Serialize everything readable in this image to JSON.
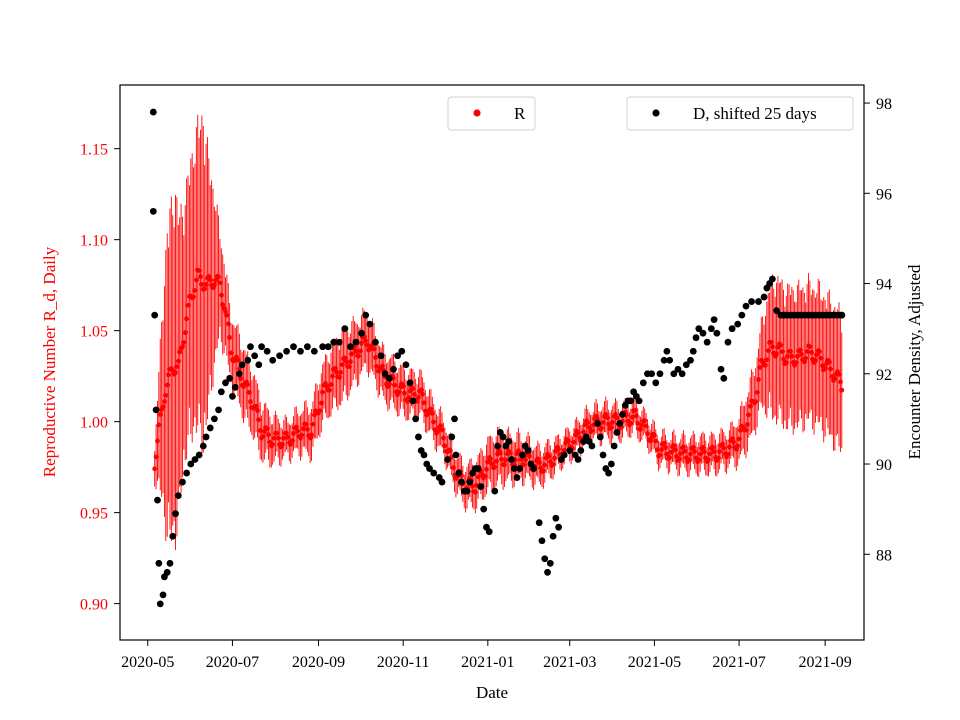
{
  "chart_data": {
    "type": "scatter",
    "xlabel": "Date",
    "ylabel_left": "Reproductive Number R_d, Daily",
    "ylabel_right": "Encounter Density, Adjusted",
    "x_ticks": [
      "2020-05",
      "2020-07",
      "2020-09",
      "2020-11",
      "2021-01",
      "2021-03",
      "2021-05",
      "2021-07",
      "2021-09"
    ],
    "x_tick_days": [
      0,
      61,
      123,
      184,
      245,
      304,
      365,
      426,
      488
    ],
    "xlim_days": [
      -20,
      516
    ],
    "ylim_left": [
      0.88,
      1.185
    ],
    "ylim_right": [
      86.1,
      98.4
    ],
    "y_ticks_left": [
      "0.90",
      "0.95",
      "1.00",
      "1.05",
      "1.10",
      "1.15"
    ],
    "y_ticks_right": [
      "88",
      "90",
      "92",
      "94",
      "96",
      "98"
    ],
    "legends": {
      "r": "R",
      "d": "D, shifted 25 days"
    },
    "colors": {
      "r": "#ff0000",
      "d": "#000000",
      "axis": "#000000"
    },
    "series_r": {
      "name": "R",
      "day_range": [
        5,
        500
      ],
      "center_keypoints": [
        [
          5,
          0.978
        ],
        [
          8,
          0.995
        ],
        [
          12,
          1.015
        ],
        [
          18,
          1.03
        ],
        [
          22,
          1.03
        ],
        [
          30,
          1.065
        ],
        [
          36,
          1.08
        ],
        [
          42,
          1.075
        ],
        [
          48,
          1.078
        ],
        [
          52,
          1.075
        ],
        [
          55,
          1.065
        ],
        [
          60,
          1.04
        ],
        [
          65,
          1.03
        ],
        [
          70,
          1.02
        ],
        [
          76,
          1.01
        ],
        [
          82,
          0.995
        ],
        [
          90,
          0.99
        ],
        [
          100,
          0.99
        ],
        [
          110,
          0.995
        ],
        [
          118,
          0.995
        ],
        [
          126,
          1.015
        ],
        [
          134,
          1.025
        ],
        [
          140,
          1.03
        ],
        [
          146,
          1.035
        ],
        [
          152,
          1.04
        ],
        [
          158,
          1.045
        ],
        [
          164,
          1.035
        ],
        [
          170,
          1.025
        ],
        [
          178,
          1.02
        ],
        [
          186,
          1.015
        ],
        [
          196,
          1.015
        ],
        [
          206,
          1.0
        ],
        [
          214,
          0.99
        ],
        [
          220,
          0.975
        ],
        [
          228,
          0.965
        ],
        [
          236,
          0.965
        ],
        [
          244,
          0.975
        ],
        [
          252,
          0.98
        ],
        [
          262,
          0.98
        ],
        [
          272,
          0.98
        ],
        [
          282,
          0.975
        ],
        [
          292,
          0.98
        ],
        [
          300,
          0.985
        ],
        [
          308,
          0.99
        ],
        [
          318,
          0.998
        ],
        [
          328,
          1.0
        ],
        [
          340,
          1.0
        ],
        [
          350,
          1.003
        ],
        [
          360,
          0.995
        ],
        [
          368,
          0.985
        ],
        [
          378,
          0.983
        ],
        [
          388,
          0.982
        ],
        [
          398,
          0.982
        ],
        [
          408,
          0.982
        ],
        [
          418,
          0.985
        ],
        [
          426,
          0.99
        ],
        [
          434,
          1.005
        ],
        [
          438,
          1.015
        ],
        [
          442,
          1.03
        ],
        [
          448,
          1.04
        ],
        [
          454,
          1.04
        ],
        [
          460,
          1.035
        ],
        [
          468,
          1.035
        ],
        [
          476,
          1.038
        ],
        [
          484,
          1.035
        ],
        [
          490,
          1.03
        ],
        [
          496,
          1.025
        ],
        [
          500,
          1.02
        ]
      ],
      "error_keypoints": [
        [
          5,
          0.01
        ],
        [
          10,
          0.05
        ],
        [
          14,
          0.09
        ],
        [
          20,
          0.1
        ],
        [
          25,
          0.075
        ],
        [
          32,
          0.08
        ],
        [
          40,
          0.095
        ],
        [
          46,
          0.06
        ],
        [
          52,
          0.03
        ],
        [
          60,
          0.02
        ],
        [
          70,
          0.02
        ],
        [
          100,
          0.01
        ],
        [
          140,
          0.02
        ],
        [
          160,
          0.015
        ],
        [
          220,
          0.01
        ],
        [
          250,
          0.015
        ],
        [
          300,
          0.008
        ],
        [
          330,
          0.01
        ],
        [
          360,
          0.008
        ],
        [
          400,
          0.01
        ],
        [
          420,
          0.01
        ],
        [
          430,
          0.015
        ],
        [
          440,
          0.02
        ],
        [
          450,
          0.04
        ],
        [
          470,
          0.04
        ],
        [
          490,
          0.04
        ],
        [
          500,
          0.04
        ]
      ]
    },
    "series_d": {
      "name": "D, shifted 25 days",
      "shift_days": 25,
      "points": [
        [
          4,
          97.8
        ],
        [
          4,
          95.6
        ],
        [
          5,
          93.3
        ],
        [
          6,
          91.2
        ],
        [
          7,
          89.2
        ],
        [
          8,
          87.8
        ],
        [
          9,
          86.9
        ],
        [
          11,
          87.1
        ],
        [
          12,
          87.5
        ],
        [
          14,
          87.6
        ],
        [
          16,
          87.8
        ],
        [
          18,
          88.4
        ],
        [
          20,
          88.9
        ],
        [
          22,
          89.3
        ],
        [
          25,
          89.6
        ],
        [
          28,
          89.8
        ],
        [
          31,
          90.0
        ],
        [
          34,
          90.1
        ],
        [
          37,
          90.2
        ],
        [
          40,
          90.4
        ],
        [
          42,
          90.6
        ],
        [
          45,
          90.8
        ],
        [
          48,
          91.0
        ],
        [
          51,
          91.2
        ],
        [
          53,
          91.6
        ],
        [
          56,
          91.8
        ],
        [
          59,
          91.9
        ],
        [
          61,
          91.5
        ],
        [
          63,
          91.7
        ],
        [
          66,
          92.0
        ],
        [
          68,
          92.2
        ],
        [
          72,
          92.3
        ],
        [
          74,
          92.6
        ],
        [
          77,
          92.4
        ],
        [
          80,
          92.2
        ],
        [
          82,
          92.6
        ],
        [
          86,
          92.5
        ],
        [
          90,
          92.3
        ],
        [
          95,
          92.4
        ],
        [
          100,
          92.5
        ],
        [
          105,
          92.6
        ],
        [
          110,
          92.5
        ],
        [
          115,
          92.6
        ],
        [
          120,
          92.5
        ],
        [
          126,
          92.6
        ],
        [
          130,
          92.6
        ],
        [
          134,
          92.7
        ],
        [
          138,
          92.7
        ],
        [
          142,
          93.0
        ],
        [
          146,
          92.6
        ],
        [
          150,
          92.7
        ],
        [
          154,
          92.9
        ],
        [
          157,
          93.3
        ],
        [
          160,
          93.1
        ],
        [
          164,
          92.7
        ],
        [
          168,
          92.4
        ],
        [
          171,
          92.0
        ],
        [
          174,
          91.9
        ],
        [
          177,
          92.1
        ],
        [
          180,
          92.4
        ],
        [
          183,
          92.5
        ],
        [
          186,
          92.2
        ],
        [
          189,
          91.8
        ],
        [
          191,
          91.4
        ],
        [
          193,
          91.0
        ],
        [
          195,
          90.6
        ],
        [
          197,
          90.3
        ],
        [
          199,
          90.2
        ],
        [
          201,
          90.0
        ],
        [
          203,
          89.9
        ],
        [
          206,
          89.8
        ],
        [
          210,
          89.7
        ],
        [
          212,
          89.6
        ],
        [
          216,
          90.1
        ],
        [
          219,
          90.6
        ],
        [
          221,
          91.0
        ],
        [
          222,
          90.2
        ],
        [
          224,
          89.8
        ],
        [
          226,
          89.6
        ],
        [
          228,
          89.4
        ],
        [
          230,
          89.4
        ],
        [
          232,
          89.6
        ],
        [
          234,
          89.8
        ],
        [
          236,
          89.9
        ],
        [
          238,
          89.9
        ],
        [
          240,
          89.5
        ],
        [
          242,
          89.0
        ],
        [
          244,
          88.6
        ],
        [
          246,
          88.5
        ],
        [
          250,
          89.4
        ],
        [
          252,
          90.4
        ],
        [
          254,
          90.7
        ],
        [
          256,
          90.6
        ],
        [
          258,
          90.4
        ],
        [
          260,
          90.5
        ],
        [
          262,
          90.1
        ],
        [
          264,
          89.9
        ],
        [
          266,
          89.7
        ],
        [
          268,
          89.9
        ],
        [
          270,
          90.2
        ],
        [
          272,
          90.4
        ],
        [
          274,
          90.3
        ],
        [
          276,
          90.0
        ],
        [
          278,
          89.9
        ],
        [
          282,
          88.7
        ],
        [
          284,
          88.3
        ],
        [
          286,
          87.9
        ],
        [
          288,
          87.6
        ],
        [
          290,
          87.8
        ],
        [
          292,
          88.4
        ],
        [
          294,
          88.8
        ],
        [
          296,
          88.6
        ],
        [
          298,
          90.1
        ],
        [
          300,
          90.2
        ],
        [
          304,
          90.3
        ],
        [
          308,
          90.2
        ],
        [
          310,
          90.1
        ],
        [
          312,
          90.3
        ],
        [
          314,
          90.5
        ],
        [
          316,
          90.6
        ],
        [
          318,
          90.5
        ],
        [
          320,
          90.4
        ],
        [
          324,
          90.9
        ],
        [
          326,
          90.6
        ],
        [
          328,
          90.2
        ],
        [
          330,
          89.9
        ],
        [
          332,
          89.8
        ],
        [
          334,
          90.0
        ],
        [
          336,
          90.4
        ],
        [
          338,
          90.7
        ],
        [
          340,
          90.9
        ],
        [
          342,
          91.1
        ],
        [
          344,
          91.3
        ],
        [
          346,
          91.4
        ],
        [
          348,
          91.4
        ],
        [
          350,
          91.6
        ],
        [
          352,
          91.5
        ],
        [
          354,
          91.4
        ],
        [
          357,
          91.8
        ],
        [
          360,
          92.0
        ],
        [
          363,
          92.0
        ],
        [
          366,
          91.8
        ],
        [
          369,
          92.0
        ],
        [
          372,
          92.3
        ],
        [
          374,
          92.5
        ],
        [
          376,
          92.3
        ],
        [
          379,
          92.0
        ],
        [
          382,
          92.1
        ],
        [
          385,
          92.0
        ],
        [
          388,
          92.2
        ],
        [
          391,
          92.3
        ],
        [
          393,
          92.5
        ],
        [
          395,
          92.8
        ],
        [
          397,
          93.0
        ],
        [
          400,
          92.9
        ],
        [
          403,
          92.7
        ],
        [
          406,
          93.0
        ],
        [
          408,
          93.2
        ],
        [
          410,
          92.9
        ],
        [
          413,
          92.1
        ],
        [
          415,
          91.9
        ],
        [
          418,
          92.7
        ],
        [
          421,
          93.0
        ],
        [
          425,
          93.1
        ],
        [
          428,
          93.3
        ],
        [
          431,
          93.5
        ],
        [
          435,
          93.6
        ],
        [
          440,
          93.6
        ],
        [
          444,
          93.7
        ],
        [
          446,
          93.9
        ],
        [
          448,
          94.0
        ],
        [
          450,
          94.1
        ],
        [
          453,
          93.4
        ],
        [
          456,
          93.3
        ],
        [
          458,
          93.3
        ],
        [
          460,
          93.3
        ],
        [
          470,
          93.3
        ],
        [
          480,
          93.3
        ],
        [
          490,
          93.3
        ],
        [
          500,
          93.3
        ]
      ]
    }
  }
}
